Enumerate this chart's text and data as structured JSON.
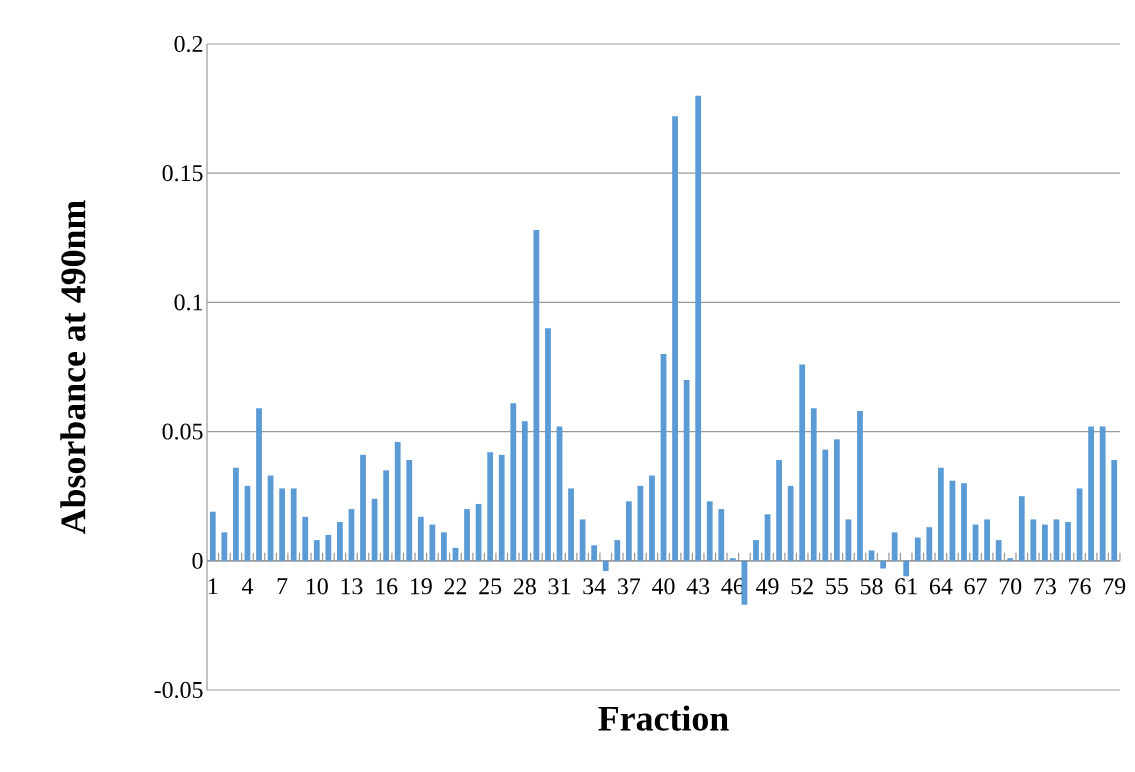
{
  "chart_data": {
    "type": "bar",
    "xlabel": "Fraction",
    "ylabel": "Absorbance at 490nm",
    "categories": [
      "1",
      null,
      null,
      "4",
      null,
      null,
      "7",
      null,
      null,
      "10",
      null,
      null,
      "13",
      null,
      null,
      "16",
      null,
      null,
      "19",
      null,
      null,
      "22",
      null,
      null,
      "25",
      null,
      null,
      "28",
      null,
      null,
      "31",
      null,
      null,
      "34",
      null,
      null,
      "37",
      null,
      null,
      "40",
      null,
      null,
      "43",
      null,
      null,
      "46",
      null,
      null,
      "49",
      null,
      null,
      "52",
      null,
      null,
      "55",
      null,
      null,
      "58",
      null,
      null,
      "61",
      null,
      null,
      "64",
      null,
      null,
      "67",
      null,
      null,
      "70",
      null,
      null,
      "73",
      null,
      null,
      "76",
      null,
      null,
      "79"
    ],
    "values": [
      0.019,
      0.011,
      0.036,
      0.029,
      0.059,
      0.033,
      0.028,
      0.028,
      0.017,
      0.008,
      0.01,
      0.015,
      0.02,
      0.041,
      0.024,
      0.035,
      0.046,
      0.039,
      0.017,
      0.014,
      0.011,
      0.005,
      0.02,
      0.022,
      0.042,
      0.041,
      0.061,
      0.054,
      0.128,
      0.09,
      0.052,
      0.028,
      0.016,
      0.006,
      -0.004,
      0.008,
      0.023,
      0.029,
      0.033,
      0.08,
      0.172,
      0.07,
      0.18,
      0.023,
      0.02,
      0.001,
      -0.017,
      0.008,
      0.018,
      0.039,
      0.029,
      0.076,
      0.059,
      0.043,
      0.047,
      0.016,
      0.058,
      0.004,
      -0.003,
      0.011,
      -0.006,
      0.009,
      0.013,
      0.036,
      0.031,
      0.03,
      0.014,
      0.016,
      0.008,
      0.001,
      0.025,
      0.016,
      0.014,
      0.016,
      0.015,
      0.028,
      0.052,
      0.052,
      0.039
    ],
    "color": "#5b9bd5",
    "ylim": [
      -0.05,
      0.2
    ],
    "yticks": [
      -0.05,
      0,
      0.05,
      0.1,
      0.15,
      0.2
    ],
    "grid": "y"
  }
}
